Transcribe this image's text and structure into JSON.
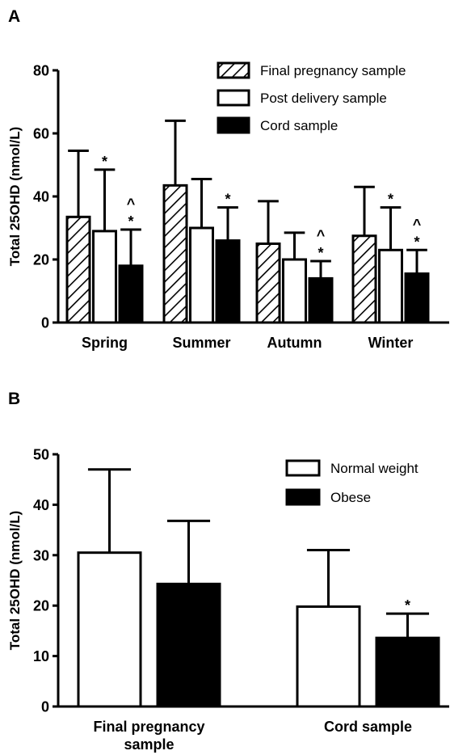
{
  "chart_data": [
    {
      "panel": "A",
      "type": "bar",
      "ylabel": "Total 25OHD (nmol/L)",
      "ylim": [
        0,
        80
      ],
      "yticks": [
        0,
        20,
        40,
        60,
        80
      ],
      "categories": [
        "Spring",
        "Summer",
        "Autumn",
        "Winter"
      ],
      "series": [
        {
          "name": "Final pregnancy sample",
          "fill": "hatch",
          "values": [
            33.5,
            43.5,
            25,
            27.5
          ],
          "errors": [
            21,
            20.5,
            13.5,
            15.5
          ]
        },
        {
          "name": "Post delivery sample",
          "fill": "white",
          "values": [
            29,
            30,
            20,
            23
          ],
          "errors": [
            19.5,
            15.5,
            8.5,
            13.5
          ]
        },
        {
          "name": "Cord sample",
          "fill": "black",
          "values": [
            18,
            26,
            14,
            15.5
          ],
          "errors": [
            11.5,
            10.5,
            5.5,
            7.5
          ]
        }
      ],
      "annotations": [
        {
          "category": 0,
          "series": 1,
          "lines": [
            "*"
          ]
        },
        {
          "category": 0,
          "series": 2,
          "lines": [
            "^",
            "*"
          ]
        },
        {
          "category": 1,
          "series": 2,
          "lines": [
            "*"
          ]
        },
        {
          "category": 2,
          "series": 2,
          "lines": [
            "^",
            "*"
          ]
        },
        {
          "category": 3,
          "series": 1,
          "lines": [
            "*"
          ]
        },
        {
          "category": 3,
          "series": 2,
          "lines": [
            "^",
            "*"
          ]
        }
      ],
      "legend": "top-right"
    },
    {
      "panel": "B",
      "type": "bar",
      "ylabel": "Total 25OHD (nmol/L)",
      "ylim": [
        0,
        50
      ],
      "yticks": [
        0,
        10,
        20,
        30,
        40,
        50
      ],
      "categories": [
        [
          "Final pregnancy",
          "sample"
        ],
        [
          "Cord sample"
        ]
      ],
      "series": [
        {
          "name": "Normal weight",
          "fill": "white",
          "values": [
            30.5,
            19.8
          ],
          "errors": [
            16.5,
            11.2
          ]
        },
        {
          "name": "Obese",
          "fill": "black",
          "values": [
            24.3,
            13.6
          ],
          "errors": [
            12.5,
            4.8
          ]
        }
      ],
      "annotations": [
        {
          "category": 1,
          "series": 1,
          "lines": [
            "*"
          ]
        }
      ],
      "legend": "top-right"
    }
  ]
}
